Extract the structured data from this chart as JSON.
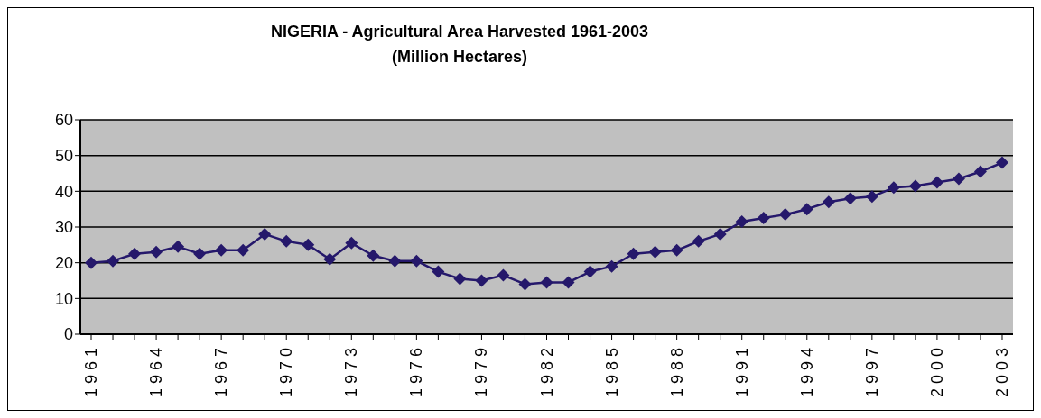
{
  "chart_data": {
    "type": "line",
    "title": "NIGERIA - Agricultural Area Harvested 1961-2003",
    "subtitle": "(Million Hectares)",
    "categories": [
      "1961",
      null,
      null,
      "1964",
      null,
      null,
      "1967",
      null,
      null,
      "1970",
      null,
      null,
      "1973",
      null,
      null,
      "1976",
      null,
      null,
      "1979",
      null,
      null,
      "1982",
      null,
      null,
      "1985",
      null,
      null,
      "1988",
      null,
      null,
      "1991",
      null,
      null,
      "1994",
      null,
      null,
      "1997",
      null,
      null,
      "2000",
      null,
      null,
      "2003"
    ],
    "series": [
      {
        "color": "#25186b",
        "values": [
          20,
          20.5,
          22.5,
          23,
          24.5,
          22.5,
          23.5,
          23.5,
          28,
          26,
          25,
          21,
          25.5,
          22,
          20.5,
          20.5,
          17.5,
          15.5,
          15,
          16.5,
          14,
          14.5,
          14.5,
          17.5,
          19,
          22.5,
          23,
          23.5,
          26,
          28,
          31.5,
          32.5,
          33.5,
          35,
          37,
          38,
          38.5,
          41,
          41.5,
          42.5,
          43.5,
          45.5,
          48
        ]
      }
    ],
    "ylim": [
      0,
      60
    ],
    "yticks": [
      0,
      10,
      20,
      30,
      40,
      50,
      60
    ],
    "grid": "y",
    "marker": "diamond",
    "line_style": "solid",
    "legend": false
  }
}
